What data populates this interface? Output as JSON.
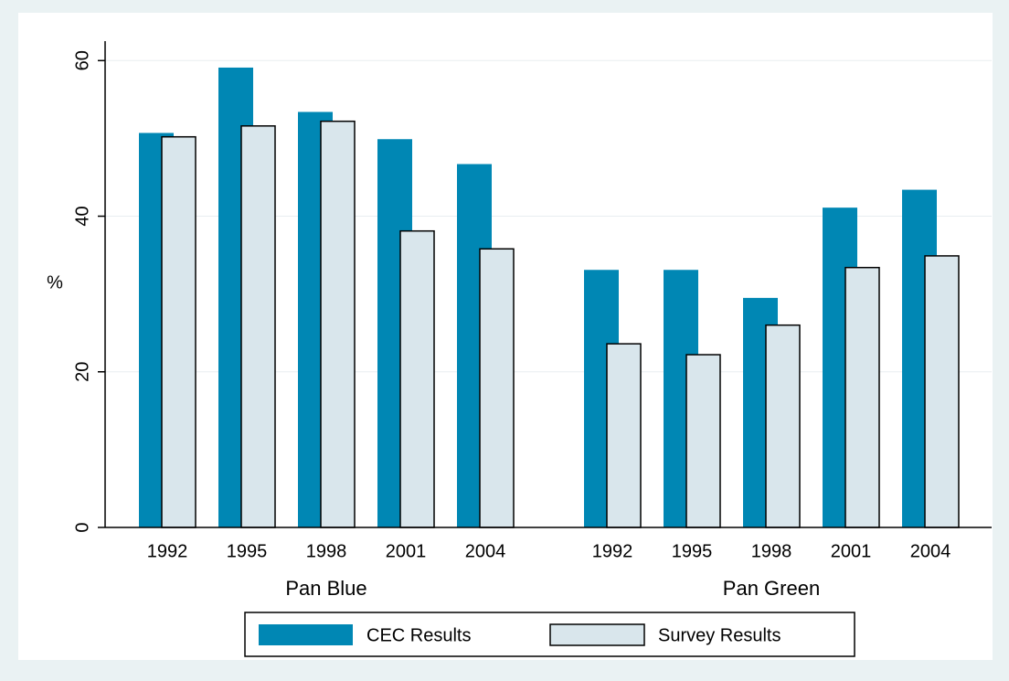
{
  "chart_data": {
    "type": "bar",
    "y_label": "%",
    "groups": [
      {
        "name": "Pan Blue",
        "categories": [
          "1992",
          "1995",
          "1998",
          "2001",
          "2004"
        ]
      },
      {
        "name": "Pan Green",
        "categories": [
          "1992",
          "1995",
          "1998",
          "2001",
          "2004"
        ]
      }
    ],
    "series": [
      {
        "name": "CEC Results",
        "color": "#0087b4",
        "values": [
          50.7,
          59.1,
          53.4,
          49.9,
          46.7,
          33.1,
          33.1,
          29.5,
          41.1,
          43.4
        ]
      },
      {
        "name": "Survey Results",
        "color": "#d9e6ec",
        "values": [
          50.2,
          51.6,
          52.2,
          38.1,
          35.8,
          23.6,
          22.2,
          26.0,
          33.4,
          34.9
        ]
      }
    ],
    "ylim": [
      0,
      62.5
    ],
    "yticks": [
      0,
      20,
      40,
      60
    ],
    "grid": true
  }
}
